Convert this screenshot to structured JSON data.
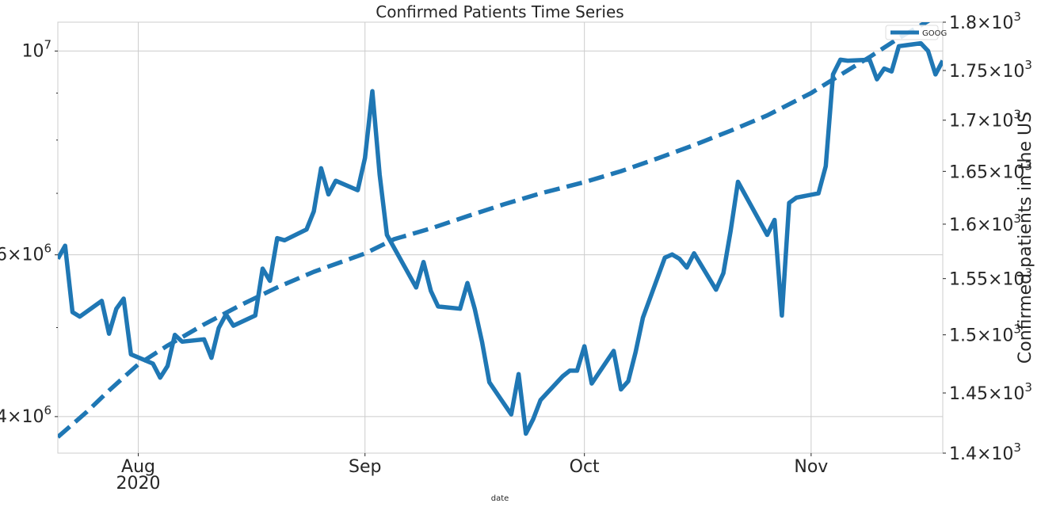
{
  "chart_data": {
    "type": "line",
    "title": "Confirmed Patients Time Series",
    "xlabel": "date",
    "ylabel_left": "",
    "ylabel_right": "Confirmed patients in the US",
    "x_range": [
      "2020-07-21",
      "2020-11-19"
    ],
    "x_ticks": [
      {
        "date": "2020-08-01",
        "label": "Aug",
        "sublabel": "2020"
      },
      {
        "date": "2020-09-01",
        "label": "Sep",
        "sublabel": ""
      },
      {
        "date": "2020-10-01",
        "label": "Oct",
        "sublabel": ""
      },
      {
        "date": "2020-11-01",
        "label": "Nov",
        "sublabel": ""
      }
    ],
    "left_axis": {
      "scale": "log",
      "range": [
        3650000,
        10750000
      ],
      "ticks": [
        {
          "value": 4000000,
          "mantissa": "4",
          "exponent": "6"
        },
        {
          "value": 6000000,
          "mantissa": "6",
          "exponent": "6"
        },
        {
          "value": 10000000,
          "mantissa": "",
          "exponent": "7"
        }
      ],
      "minor_ticks": [
        5000000,
        7000000,
        8000000,
        9000000
      ]
    },
    "right_axis": {
      "scale": "log",
      "range": [
        1400,
        1800
      ],
      "ticks": [
        {
          "value": 1400,
          "mantissa": "1.4",
          "exponent": "3"
        },
        {
          "value": 1450,
          "mantissa": "1.45",
          "exponent": "3"
        },
        {
          "value": 1500,
          "mantissa": "1.5",
          "exponent": "3"
        },
        {
          "value": 1550,
          "mantissa": "1.55",
          "exponent": "3"
        },
        {
          "value": 1600,
          "mantissa": "1.6",
          "exponent": "3"
        },
        {
          "value": 1650,
          "mantissa": "1.65",
          "exponent": "3"
        },
        {
          "value": 1700,
          "mantissa": "1.7",
          "exponent": "3"
        },
        {
          "value": 1750,
          "mantissa": "1.75",
          "exponent": "3"
        },
        {
          "value": 1800,
          "mantissa": "1.8",
          "exponent": "3"
        }
      ]
    },
    "grid": true,
    "legend": {
      "placement": "top-right",
      "entries": [
        "GOOG"
      ]
    },
    "series": [
      {
        "name": "GOOG",
        "axis": "right",
        "style": "solid",
        "color": "#1f77b4",
        "points": [
          [
            "2020-07-21",
            1568
          ],
          [
            "2020-07-22",
            1580
          ],
          [
            "2020-07-23",
            1520
          ],
          [
            "2020-07-24",
            1516
          ],
          [
            "2020-07-27",
            1530
          ],
          [
            "2020-07-28",
            1501
          ],
          [
            "2020-07-29",
            1523
          ],
          [
            "2020-07-30",
            1532
          ],
          [
            "2020-07-31",
            1483
          ],
          [
            "2020-08-03",
            1475
          ],
          [
            "2020-08-04",
            1463
          ],
          [
            "2020-08-05",
            1473
          ],
          [
            "2020-08-06",
            1500
          ],
          [
            "2020-08-07",
            1494
          ],
          [
            "2020-08-10",
            1496
          ],
          [
            "2020-08-11",
            1480
          ],
          [
            "2020-08-12",
            1506
          ],
          [
            "2020-08-13",
            1518
          ],
          [
            "2020-08-14",
            1508
          ],
          [
            "2020-08-17",
            1517
          ],
          [
            "2020-08-18",
            1559
          ],
          [
            "2020-08-19",
            1548
          ],
          [
            "2020-08-20",
            1587
          ],
          [
            "2020-08-21",
            1585
          ],
          [
            "2020-08-24",
            1595
          ],
          [
            "2020-08-25",
            1612
          ],
          [
            "2020-08-26",
            1653
          ],
          [
            "2020-08-27",
            1628
          ],
          [
            "2020-08-28",
            1641
          ],
          [
            "2020-08-31",
            1632
          ],
          [
            "2020-09-01",
            1663
          ],
          [
            "2020-09-02",
            1729
          ],
          [
            "2020-09-03",
            1647
          ],
          [
            "2020-09-04",
            1590
          ],
          [
            "2020-09-08",
            1542
          ],
          [
            "2020-09-09",
            1565
          ],
          [
            "2020-09-10",
            1539
          ],
          [
            "2020-09-11",
            1525
          ],
          [
            "2020-09-14",
            1523
          ],
          [
            "2020-09-15",
            1546
          ],
          [
            "2020-09-16",
            1523
          ],
          [
            "2020-09-17",
            1494
          ],
          [
            "2020-09-18",
            1459
          ],
          [
            "2020-09-21",
            1432
          ],
          [
            "2020-09-22",
            1466
          ],
          [
            "2020-09-23",
            1416
          ],
          [
            "2020-09-24",
            1428
          ],
          [
            "2020-09-25",
            1444
          ],
          [
            "2020-09-28",
            1464
          ],
          [
            "2020-09-29",
            1469
          ],
          [
            "2020-09-30",
            1469
          ],
          [
            "2020-10-01",
            1490
          ],
          [
            "2020-10-02",
            1458
          ],
          [
            "2020-10-05",
            1486
          ],
          [
            "2020-10-06",
            1453
          ],
          [
            "2020-10-07",
            1460
          ],
          [
            "2020-10-08",
            1485
          ],
          [
            "2020-10-09",
            1515
          ],
          [
            "2020-10-12",
            1569
          ],
          [
            "2020-10-13",
            1572
          ],
          [
            "2020-10-14",
            1568
          ],
          [
            "2020-10-15",
            1560
          ],
          [
            "2020-10-16",
            1573
          ],
          [
            "2020-10-19",
            1540
          ],
          [
            "2020-10-20",
            1555
          ],
          [
            "2020-10-21",
            1594
          ],
          [
            "2020-10-22",
            1640
          ],
          [
            "2020-10-26",
            1590
          ],
          [
            "2020-10-27",
            1604
          ],
          [
            "2020-10-28",
            1517
          ],
          [
            "2020-10-29",
            1620
          ],
          [
            "2020-10-30",
            1625
          ],
          [
            "2020-11-02",
            1629
          ],
          [
            "2020-11-03",
            1655
          ],
          [
            "2020-11-04",
            1746
          ],
          [
            "2020-11-05",
            1761
          ],
          [
            "2020-11-06",
            1760
          ],
          [
            "2020-11-09",
            1761
          ],
          [
            "2020-11-10",
            1741
          ],
          [
            "2020-11-11",
            1752
          ],
          [
            "2020-11-12",
            1749
          ],
          [
            "2020-11-13",
            1775
          ],
          [
            "2020-11-16",
            1778
          ],
          [
            "2020-11-17",
            1770
          ],
          [
            "2020-11-18",
            1746
          ],
          [
            "2020-11-19",
            1760
          ]
        ]
      },
      {
        "name": "",
        "axis": "left",
        "style": "dashed",
        "color": "#1f77b4",
        "points": [
          [
            "2020-07-21",
            3800000
          ],
          [
            "2020-07-25",
            4050000
          ],
          [
            "2020-07-28",
            4270000
          ],
          [
            "2020-08-01",
            4560000
          ],
          [
            "2020-08-05",
            4780000
          ],
          [
            "2020-08-10",
            5040000
          ],
          [
            "2020-08-15",
            5290000
          ],
          [
            "2020-08-20",
            5530000
          ],
          [
            "2020-08-25",
            5750000
          ],
          [
            "2020-09-01",
            6020000
          ],
          [
            "2020-09-05",
            6240000
          ],
          [
            "2020-09-10",
            6410000
          ],
          [
            "2020-09-15",
            6610000
          ],
          [
            "2020-09-20",
            6810000
          ],
          [
            "2020-09-25",
            7000000
          ],
          [
            "2020-10-01",
            7200000
          ],
          [
            "2020-10-06",
            7400000
          ],
          [
            "2020-10-11",
            7640000
          ],
          [
            "2020-10-16",
            7900000
          ],
          [
            "2020-10-21",
            8190000
          ],
          [
            "2020-10-26",
            8510000
          ],
          [
            "2020-11-01",
            9000000
          ],
          [
            "2020-11-05",
            9420000
          ],
          [
            "2020-11-09",
            9850000
          ],
          [
            "2020-11-13",
            10330000
          ],
          [
            "2020-11-17",
            10780000
          ],
          [
            "2020-11-19",
            11100000
          ]
        ]
      }
    ]
  }
}
